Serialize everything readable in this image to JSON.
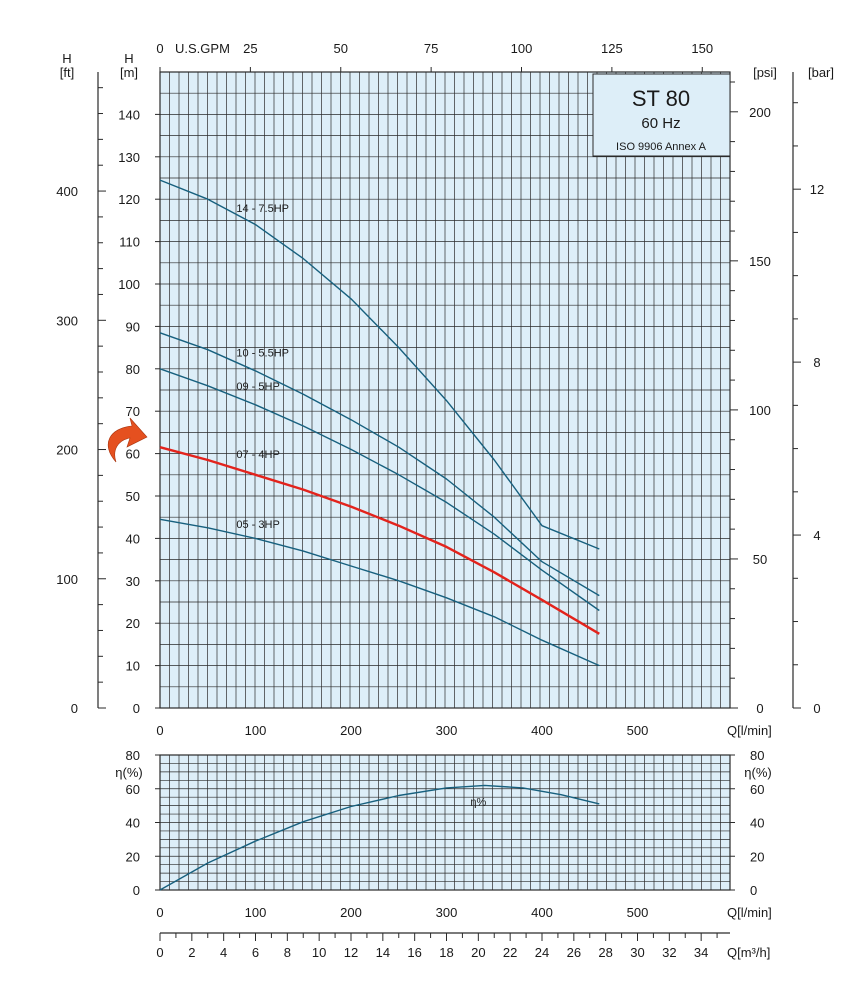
{
  "colors": {
    "plot_bg": "#ddeef8",
    "grid": "#2a2a2a",
    "curve": "#17607e",
    "highlight": "#e3231c",
    "arrow": "#e5501f"
  },
  "title_box": {
    "model": "ST 80",
    "frequency": "60 Hz",
    "standard": "ISO 9906 Annex A"
  },
  "head_chart": {
    "left_label_m": [
      "H",
      "[m]"
    ],
    "left_label_ft": [
      "H",
      "[ft]"
    ],
    "right_label_psi": "[psi]",
    "right_label_bar": "[bar]",
    "top_label": "U.S.GPM",
    "q_label": "Q[l/min]",
    "ft_ticks": [
      "0",
      "100",
      "200",
      "300",
      "400"
    ],
    "psi_ticks": [
      "0",
      "50",
      "100",
      "150",
      "200"
    ],
    "bar_ticks": [
      "0",
      "4",
      "8",
      "12"
    ]
  },
  "eff_chart": {
    "label": "η(%)",
    "q_label": "Q[l/min]",
    "curve_label": "η%"
  },
  "flow_axis": {
    "label": "Q[m³/h]"
  },
  "chart_data": [
    {
      "type": "line",
      "title": "ST 80",
      "subtitle": "60 Hz",
      "xlabel": "Q[l/min]",
      "ylabel": "H [m]",
      "xlim": [
        0,
        600
      ],
      "ylim": [
        0,
        150
      ],
      "x_ticks": [
        0,
        100,
        200,
        300,
        400,
        500
      ],
      "y_ticks": [
        0,
        10,
        20,
        30,
        40,
        50,
        60,
        70,
        80,
        90,
        100,
        110,
        120,
        130,
        140
      ],
      "top_axis": {
        "label": "U.S.GPM",
        "ticks": [
          0,
          25,
          50,
          75,
          100,
          125,
          150
        ]
      },
      "highlight_series": "07 - 4HP",
      "series": [
        {
          "name": "14 - 7.5HP",
          "x": [
            0,
            50,
            100,
            150,
            200,
            250,
            300,
            350,
            400,
            460
          ],
          "y": [
            124.5,
            120,
            114,
            106,
            96.5,
            85,
            72.5,
            58.5,
            43,
            37.5
          ]
        },
        {
          "name": "10 - 5.5HP",
          "x": [
            0,
            50,
            100,
            150,
            200,
            250,
            300,
            350,
            400,
            460
          ],
          "y": [
            88.5,
            84.5,
            79.5,
            74,
            68,
            61.5,
            54,
            45,
            34.5,
            26.5
          ]
        },
        {
          "name": "09 - 5HP",
          "x": [
            0,
            50,
            100,
            150,
            200,
            250,
            300,
            350,
            400,
            460
          ],
          "y": [
            80,
            76,
            71.5,
            66.5,
            61,
            55,
            48.5,
            41,
            32.5,
            23
          ]
        },
        {
          "name": "07 - 4HP",
          "x": [
            0,
            50,
            100,
            150,
            200,
            250,
            300,
            350,
            400,
            460
          ],
          "y": [
            61.5,
            58.5,
            55,
            51.5,
            47.5,
            43,
            38,
            32,
            25.5,
            17.5
          ]
        },
        {
          "name": "05 - 3HP",
          "x": [
            0,
            50,
            100,
            150,
            200,
            250,
            300,
            350,
            400,
            460
          ],
          "y": [
            44.5,
            42.5,
            40,
            37,
            33.5,
            30,
            26,
            21.5,
            16,
            10
          ]
        }
      ]
    },
    {
      "type": "line",
      "xlabel": "Q[l/min]",
      "ylabel": "η(%)",
      "xlim": [
        0,
        600
      ],
      "ylim": [
        0,
        80
      ],
      "x_ticks": [
        0,
        100,
        200,
        300,
        400,
        500
      ],
      "y_ticks": [
        0,
        20,
        40,
        60,
        80
      ],
      "bottom_axis": {
        "label": "Q[m³/h]",
        "ticks": [
          0,
          2,
          4,
          6,
          8,
          10,
          12,
          14,
          16,
          18,
          20,
          22,
          24,
          26,
          28,
          30,
          32,
          34
        ]
      },
      "series": [
        {
          "name": "η%",
          "x": [
            0,
            50,
            100,
            150,
            200,
            250,
            300,
            340,
            380,
            420,
            460
          ],
          "y": [
            0,
            16,
            29,
            40.5,
            49.5,
            56,
            60.5,
            62,
            60.5,
            56.5,
            51
          ]
        }
      ]
    }
  ]
}
